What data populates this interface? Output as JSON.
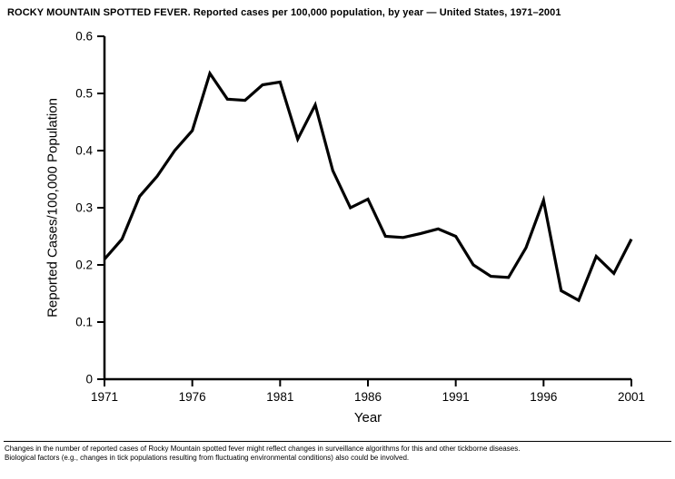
{
  "header": {
    "title": "ROCKY MOUNTAIN SPOTTED FEVER. Reported cases per 100,000 population, by year — United States, 1971–2001"
  },
  "footnote": {
    "line1": "Changes in the number of reported cases of Rocky Mountain spotted fever might reflect changes in surveillance algorithms for this and other tickborne diseases.",
    "line2": "Biological factors (e.g., changes in tick populations resulting from fluctuating environmental conditions) also could be involved."
  },
  "chart_data": {
    "type": "line",
    "title": "ROCKY MOUNTAIN SPOTTED FEVER. Reported cases per 100,000 population, by year — United States, 1971–2001",
    "xlabel": "Year",
    "ylabel": "Reported Cases/100,000 Population",
    "xlim": [
      1971,
      2001
    ],
    "ylim": [
      0,
      0.6
    ],
    "x_ticks": [
      1971,
      1976,
      1981,
      1986,
      1991,
      1996,
      2001
    ],
    "y_ticks": [
      0,
      0.1,
      0.2,
      0.3,
      0.4,
      0.5,
      0.6
    ],
    "grid": false,
    "legend": "none",
    "line_color": "#000000",
    "x": [
      1971,
      1972,
      1973,
      1974,
      1975,
      1976,
      1977,
      1978,
      1979,
      1980,
      1981,
      1982,
      1983,
      1984,
      1985,
      1986,
      1987,
      1988,
      1989,
      1990,
      1991,
      1992,
      1993,
      1994,
      1995,
      1996,
      1997,
      1998,
      1999,
      2000,
      2001
    ],
    "values": [
      0.21,
      0.245,
      0.32,
      0.355,
      0.4,
      0.435,
      0.535,
      0.49,
      0.488,
      0.515,
      0.52,
      0.42,
      0.48,
      0.365,
      0.3,
      0.315,
      0.25,
      0.248,
      0.255,
      0.263,
      0.25,
      0.2,
      0.18,
      0.178,
      0.23,
      0.313,
      0.155,
      0.138,
      0.215,
      0.185,
      0.245
    ]
  }
}
